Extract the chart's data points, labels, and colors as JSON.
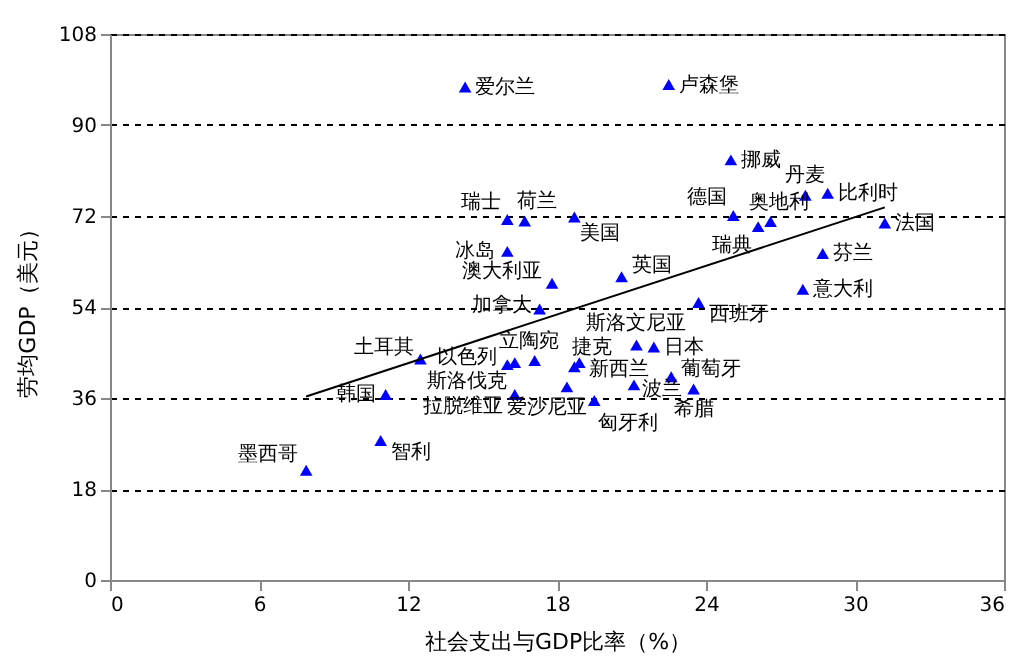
{
  "chart_data": {
    "type": "scatter",
    "xlabel": "社会支出与GDP比率（%）",
    "ylabel": "劳均GDP（美元）",
    "xlim": [
      0,
      36
    ],
    "ylim": [
      0,
      108
    ],
    "xticks": [
      0,
      6,
      12,
      18,
      24,
      30,
      36
    ],
    "yticks": [
      0,
      18,
      36,
      54,
      72,
      90,
      108
    ],
    "grid": "y",
    "series": [
      {
        "color": "#0000ff",
        "marker": "triangle",
        "x": [
          14.3,
          22.5,
          25.0,
          28.0,
          28.9,
          25.1,
          26.1,
          26.6,
          31.2,
          16.0,
          16.7,
          18.7,
          16.0,
          17.8,
          20.6,
          17.3,
          23.7,
          28.7,
          27.9,
          12.5,
          17.1,
          16.0,
          18.7,
          21.2,
          21.9,
          18.9,
          22.6,
          16.3,
          21.1,
          11.1,
          16.3,
          18.4,
          19.5,
          23.5,
          10.9,
          7.9
        ],
        "values": [
          97.5,
          98.0,
          83.1,
          76.1,
          76.5,
          72.1,
          69.9,
          70.9,
          70.6,
          71.3,
          71.0,
          71.8,
          65.0,
          58.7,
          60.0,
          53.6,
          54.9,
          64.6,
          57.5,
          43.7,
          43.4,
          42.6,
          42.2,
          46.5,
          46.1,
          43.0,
          40.2,
          43.0,
          38.6,
          36.7,
          36.7,
          38.2,
          35.5,
          37.8,
          27.6,
          21.7
        ]
      },
      {
        "type": "line",
        "color": "#000000",
        "line_style": "solid",
        "x": [
          7.9,
          31.2
        ],
        "values": [
          36.3,
          73.7
        ]
      }
    ],
    "annotations": [
      {
        "text": "爱尔兰",
        "x": 14.3,
        "y": 97.5
      },
      {
        "text": "卢森堡",
        "x": 22.5,
        "y": 98.0
      },
      {
        "text": "挪威",
        "x": 25.0,
        "y": 83.1
      },
      {
        "text": "丹麦",
        "x": 28.0,
        "y": 76.1
      },
      {
        "text": "比利时",
        "x": 28.9,
        "y": 76.5
      },
      {
        "text": "德国",
        "x": 25.1,
        "y": 72.1
      },
      {
        "text": "瑞典",
        "x": 26.1,
        "y": 69.9
      },
      {
        "text": "奥地利",
        "x": 26.6,
        "y": 70.9
      },
      {
        "text": "法国",
        "x": 31.2,
        "y": 70.6
      },
      {
        "text": "瑞士",
        "x": 16.0,
        "y": 71.3
      },
      {
        "text": "荷兰",
        "x": 16.7,
        "y": 71.0
      },
      {
        "text": "美国",
        "x": 18.7,
        "y": 71.8
      },
      {
        "text": "冰岛",
        "x": 16.0,
        "y": 65.0
      },
      {
        "text": "澳大利亚",
        "x": 17.8,
        "y": 58.7
      },
      {
        "text": "英国",
        "x": 20.6,
        "y": 60.0
      },
      {
        "text": "加拿大",
        "x": 17.3,
        "y": 53.6
      },
      {
        "text": "西班牙",
        "x": 23.7,
        "y": 54.9
      },
      {
        "text": "芬兰",
        "x": 28.7,
        "y": 64.6
      },
      {
        "text": "意大利",
        "x": 27.9,
        "y": 57.5
      },
      {
        "text": "土耳其",
        "x": 12.5,
        "y": 43.7
      },
      {
        "text": "立陶宛",
        "x": 17.1,
        "y": 43.4
      },
      {
        "text": "以色列",
        "x": 16.0,
        "y": 42.6
      },
      {
        "text": "捷克",
        "x": 18.7,
        "y": 42.2
      },
      {
        "text": "斯洛文尼亚",
        "x": 21.2,
        "y": 46.5
      },
      {
        "text": "日本",
        "x": 21.9,
        "y": 46.1
      },
      {
        "text": "新西兰",
        "x": 18.9,
        "y": 43.0
      },
      {
        "text": "葡萄牙",
        "x": 22.6,
        "y": 40.2
      },
      {
        "text": "斯洛伐克",
        "x": 16.3,
        "y": 43.0
      },
      {
        "text": "波兰",
        "x": 21.1,
        "y": 38.6
      },
      {
        "text": "韩国",
        "x": 11.1,
        "y": 36.7
      },
      {
        "text": "拉脱维亚",
        "x": 16.3,
        "y": 36.7
      },
      {
        "text": "爱沙尼亚",
        "x": 18.4,
        "y": 38.2
      },
      {
        "text": "匈牙利",
        "x": 19.5,
        "y": 35.5
      },
      {
        "text": "希腊",
        "x": 23.5,
        "y": 37.8
      },
      {
        "text": "智利",
        "x": 10.9,
        "y": 27.6
      },
      {
        "text": "墨西哥",
        "x": 7.9,
        "y": 21.7
      }
    ]
  }
}
